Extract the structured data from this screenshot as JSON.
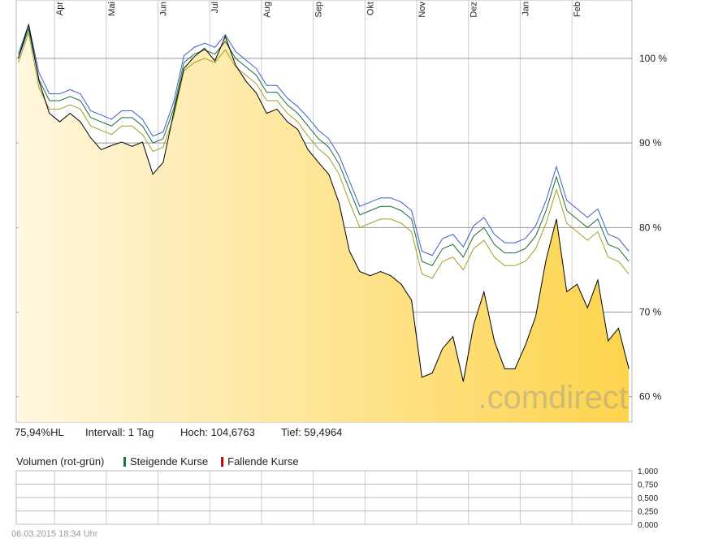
{
  "chart_data": [
    {
      "type": "line",
      "xlim": [
        0.26,
        12.16
      ],
      "xticks": [
        {
          "value": 1,
          "label": "Apr"
        },
        {
          "value": 2,
          "label": "Mai"
        },
        {
          "value": 3,
          "label": "Jun"
        },
        {
          "value": 4,
          "label": "Jul"
        },
        {
          "value": 5,
          "label": "Aug"
        },
        {
          "value": 6,
          "label": "Sep"
        },
        {
          "value": 7,
          "label": "Okt"
        },
        {
          "value": 8,
          "label": "Nov"
        },
        {
          "value": 9,
          "label": "Dez"
        },
        {
          "value": 10,
          "label": "Jan"
        },
        {
          "value": 11,
          "label": "Feb"
        }
      ],
      "ylim": [
        57,
        106.9
      ],
      "yticks": [
        {
          "value": 60,
          "label": "60 %"
        },
        {
          "value": 70,
          "label": "70 %"
        },
        {
          "value": 80,
          "label": "80 %"
        },
        {
          "value": 90,
          "label": "90 %"
        },
        {
          "value": 100,
          "label": "100 %"
        }
      ],
      "grid": true,
      "x": [
        0.3,
        0.5,
        0.7,
        0.9,
        1.1,
        1.3,
        1.5,
        1.7,
        1.9,
        2.1,
        2.3,
        2.5,
        2.7,
        2.9,
        3.1,
        3.3,
        3.5,
        3.7,
        3.9,
        4.1,
        4.3,
        4.5,
        4.7,
        4.9,
        5.1,
        5.3,
        5.5,
        5.7,
        5.9,
        6.1,
        6.3,
        6.5,
        6.7,
        6.9,
        7.1,
        7.3,
        7.5,
        7.7,
        7.9,
        8.1,
        8.3,
        8.5,
        8.7,
        8.9,
        9.1,
        9.3,
        9.5,
        9.7,
        9.9,
        10.1,
        10.3,
        10.5,
        10.7,
        10.9,
        11.1,
        11.3,
        11.5,
        11.7,
        11.9,
        12.1
      ],
      "series": [
        {
          "color": "#a0a020",
          "values": [
            99.5,
            103,
            96.5,
            94,
            94,
            94.5,
            94,
            92,
            91.5,
            91,
            92,
            92,
            91,
            89,
            89.5,
            93,
            98.5,
            99.5,
            100,
            99.5,
            101,
            99,
            98,
            97,
            95,
            95,
            93.5,
            92.5,
            90.8,
            89.3,
            88.3,
            86.3,
            83,
            80,
            80.5,
            81,
            81,
            80.5,
            79.5,
            74.5,
            74,
            76,
            76.5,
            75,
            77.5,
            78.5,
            76.5,
            75.5,
            75.5,
            76,
            77.5,
            80.5,
            84.5,
            80.5,
            79.5,
            78.5,
            79.5,
            76.5,
            76,
            74.5
          ]
        },
        {
          "color": "#1f6b3a",
          "values": [
            100,
            103.5,
            97.5,
            95,
            95,
            95.5,
            95,
            93,
            92.5,
            92,
            93,
            93,
            92,
            90,
            90.5,
            94,
            99.5,
            100.5,
            101,
            100.5,
            102,
            100,
            99,
            98,
            96,
            96,
            94.5,
            93.5,
            92,
            90.5,
            89.5,
            87.5,
            84.5,
            81.5,
            82,
            82.5,
            82.5,
            82,
            81,
            76,
            75.5,
            77.5,
            78,
            76.5,
            79,
            80,
            78,
            77,
            77,
            77.5,
            79,
            82,
            86,
            82,
            81,
            80,
            81,
            78,
            77.5,
            76
          ]
        },
        {
          "color": "#3a5fcd",
          "values": [
            100.5,
            104,
            98.3,
            95.8,
            95.8,
            96.3,
            95.8,
            93.8,
            93.3,
            92.8,
            93.8,
            93.8,
            92.8,
            90.8,
            91.3,
            94.8,
            100.3,
            101.3,
            101.8,
            101.3,
            102.8,
            100.8,
            99.8,
            98.8,
            96.8,
            96.8,
            95.3,
            94.3,
            93,
            91.5,
            90.5,
            88.5,
            85.5,
            82.5,
            83,
            83.5,
            83.5,
            83,
            82,
            77.2,
            76.7,
            78.7,
            79.2,
            77.7,
            80.2,
            81.2,
            79.2,
            78.2,
            78.2,
            78.7,
            80.2,
            83.2,
            87.2,
            83.2,
            82.2,
            81.2,
            82.2,
            79.2,
            78.7,
            77.2
          ]
        },
        {
          "color": "#000000",
          "area": true,
          "values": [
            100,
            104,
            97.3,
            93.5,
            92.5,
            93.5,
            92.5,
            90.6,
            89.2,
            89.7,
            90.1,
            89.6,
            90.1,
            86.3,
            87.7,
            93.5,
            98.8,
            100.2,
            101.2,
            99.7,
            102.6,
            99.2,
            97.3,
            95.9,
            93.5,
            94,
            92.5,
            91.6,
            89.2,
            87.7,
            86.3,
            82.9,
            77.2,
            74.8,
            74.3,
            74.8,
            74.3,
            73.3,
            71.4,
            62.3,
            62.8,
            65.7,
            67.1,
            61.8,
            68.5,
            72.4,
            66.6,
            63.3,
            63.3,
            66.1,
            69.5,
            76.2,
            81,
            72.4,
            73.3,
            70.5,
            73.8,
            66.6,
            68.1,
            63.3
          ]
        }
      ],
      "info": [
        "75,94%HL",
        "Intervall: 1 Tag",
        "Hoch: 104,6763",
        "Tief: 59,4964"
      ],
      "watermark": ".comdirect"
    },
    {
      "type": "bar",
      "title": "Volumen (rot-grün)",
      "series": [
        {
          "name": "Steigende Kurse",
          "color": "#1a7a3a"
        },
        {
          "name": "Fallende Kurse",
          "color": "#c00000"
        }
      ],
      "ylim": [
        0,
        1
      ],
      "yticks": [
        {
          "value": 0,
          "label": "0,000"
        },
        {
          "value": 0.25,
          "label": "0,250"
        },
        {
          "value": 0.5,
          "label": "0,500"
        },
        {
          "value": 0.75,
          "label": "0,750"
        },
        {
          "value": 1,
          "label": "1,000"
        }
      ],
      "grid": true
    }
  ],
  "footer": "06.03.2015 18:34 Uhr"
}
